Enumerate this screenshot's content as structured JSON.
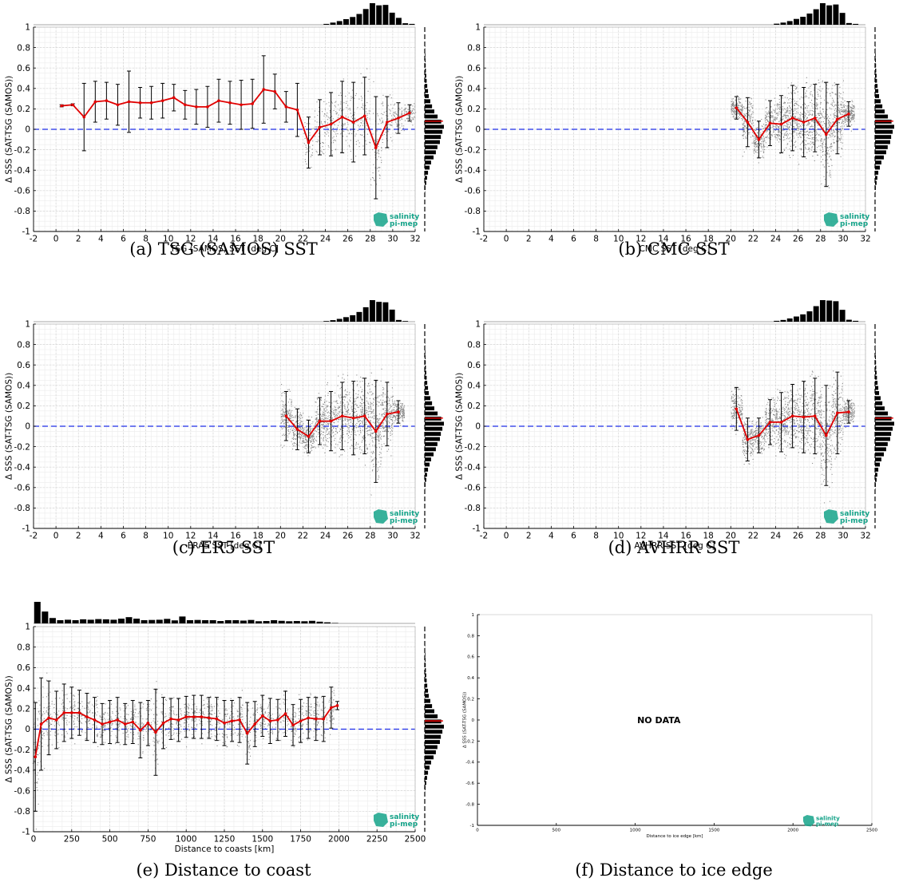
{
  "colors": {
    "line": "#e00000",
    "zero": "#1f2ee8",
    "scatter": "#8a8a8a",
    "logo": "#15a389",
    "bars": "#000000"
  },
  "logo": {
    "line1": "salinity",
    "line2": "pi-mep"
  },
  "chart_data": [
    {
      "id": "a",
      "type": "scatter",
      "caption": "(a) TSG (SAMOS) SST",
      "xlabel": "TSG (SAMOS) SST [deg C]",
      "ylabel": "Δ SSS (SAT-TSG (SAMOS))",
      "xlim": [
        -2,
        32
      ],
      "ylim": [
        -1,
        1
      ],
      "grid": true,
      "xticks": [
        -2,
        0,
        2,
        4,
        6,
        8,
        10,
        12,
        14,
        16,
        18,
        20,
        22,
        24,
        26,
        28,
        30,
        32
      ],
      "yticks": [
        -1,
        -0.8,
        -0.6,
        -0.4,
        -0.2,
        0,
        0.2,
        0.4,
        0.6,
        0.8,
        1
      ],
      "scatter_range": [
        22,
        32
      ],
      "mean_curve": {
        "x": [
          0.5,
          1.5,
          2.5,
          3.5,
          4.5,
          5.5,
          6.5,
          7.5,
          8.5,
          9.5,
          10.5,
          11.5,
          12.5,
          13.5,
          14.5,
          15.5,
          16.5,
          17.5,
          18.5,
          19.5,
          20.5,
          21.5,
          22.5,
          23.5,
          24.5,
          25.5,
          26.5,
          27.5,
          28.5,
          29.5,
          30.5,
          31.5
        ],
        "y": [
          0.23,
          0.24,
          0.12,
          0.27,
          0.28,
          0.24,
          0.27,
          0.26,
          0.26,
          0.28,
          0.31,
          0.24,
          0.22,
          0.22,
          0.28,
          0.26,
          0.24,
          0.25,
          0.39,
          0.37,
          0.22,
          0.19,
          -0.13,
          0.02,
          0.05,
          0.12,
          0.07,
          0.13,
          -0.18,
          0.07,
          0.11,
          0.16
        ],
        "err": [
          0.01,
          0.01,
          0.33,
          0.2,
          0.18,
          0.2,
          0.3,
          0.15,
          0.16,
          0.17,
          0.13,
          0.14,
          0.17,
          0.2,
          0.21,
          0.21,
          0.24,
          0.24,
          0.33,
          0.17,
          0.15,
          0.26,
          0.25,
          0.27,
          0.31,
          0.35,
          0.39,
          0.38,
          0.5,
          0.25,
          0.15,
          0.08
        ]
      },
      "top_hist": [
        0,
        0,
        0,
        0,
        0,
        0,
        0,
        0,
        0,
        0,
        0,
        0,
        0,
        0,
        0,
        0,
        0,
        0,
        0,
        0,
        0,
        0,
        0,
        0,
        0,
        0,
        0,
        0,
        0,
        0,
        0,
        0,
        0,
        0,
        0,
        0,
        0,
        0,
        0,
        0,
        0,
        0,
        0,
        0,
        0.04,
        0.1,
        0.17,
        0.26,
        0.36,
        0.5,
        0.73,
        1.0,
        0.9,
        0.92,
        0.56,
        0.32,
        0.07,
        0.04
      ],
      "right_hist": [
        0,
        0,
        0,
        0,
        0,
        0,
        0,
        0.02,
        0.04,
        0.08,
        0.12,
        0.17,
        0.25,
        0.33,
        0.46,
        0.58,
        0.66,
        0.79,
        0.84,
        0.92,
        1.0,
        0.86,
        0.67,
        0.5,
        0.38,
        0.29,
        0.21,
        0.17,
        0.13,
        0.1,
        0.08,
        0.06,
        0.05,
        0.04,
        0.03,
        0.02,
        0.02,
        0.01,
        0.01,
        0.01
      ]
    },
    {
      "id": "b",
      "type": "scatter",
      "caption": "(b) CMC SST",
      "xlabel": "CMC SST [deg C]",
      "ylabel": "Δ SSS (SAT-TSG (SAMOS))",
      "xlim": [
        -2,
        32
      ],
      "ylim": [
        -1,
        1
      ],
      "grid": true,
      "xticks": [
        -2,
        0,
        2,
        4,
        6,
        8,
        10,
        12,
        14,
        16,
        18,
        20,
        22,
        24,
        26,
        28,
        30,
        32
      ],
      "yticks": [
        -1,
        -0.8,
        -0.6,
        -0.4,
        -0.2,
        0,
        0.2,
        0.4,
        0.6,
        0.8,
        1
      ],
      "scatter_range": [
        20,
        31
      ],
      "mean_curve": {
        "x": [
          20.5,
          21.5,
          22.5,
          23.5,
          24.5,
          25.5,
          26.5,
          27.5,
          28.5,
          29.5,
          30.5
        ],
        "y": [
          0.21,
          0.07,
          -0.1,
          0.06,
          0.05,
          0.11,
          0.07,
          0.11,
          -0.05,
          0.1,
          0.15
        ],
        "err": [
          0.11,
          0.24,
          0.18,
          0.22,
          0.28,
          0.32,
          0.34,
          0.33,
          0.51,
          0.34,
          0.12
        ]
      },
      "top_hist": [
        0,
        0,
        0,
        0,
        0,
        0,
        0,
        0,
        0,
        0,
        0,
        0,
        0,
        0,
        0,
        0,
        0,
        0,
        0,
        0,
        0,
        0,
        0,
        0,
        0,
        0,
        0,
        0,
        0,
        0,
        0,
        0,
        0,
        0,
        0,
        0,
        0,
        0,
        0,
        0,
        0,
        0,
        0,
        0,
        0.05,
        0.1,
        0.17,
        0.27,
        0.37,
        0.52,
        0.72,
        1.0,
        0.9,
        0.94,
        0.55,
        0.08,
        0.04,
        0
      ],
      "right_hist": [
        0,
        0,
        0,
        0,
        0,
        0,
        0,
        0.02,
        0.04,
        0.08,
        0.12,
        0.17,
        0.25,
        0.33,
        0.46,
        0.58,
        0.66,
        0.79,
        0.84,
        0.92,
        1.0,
        0.86,
        0.67,
        0.5,
        0.38,
        0.29,
        0.21,
        0.17,
        0.13,
        0.1,
        0.08,
        0.06,
        0.05,
        0.04,
        0.03,
        0.02,
        0.02,
        0.01,
        0.01,
        0.01
      ]
    },
    {
      "id": "c",
      "type": "scatter",
      "caption": "(c) ER5 SST",
      "xlabel": "ERA5 SST [deg C]",
      "ylabel": "Δ SSS (SAT-TSG (SAMOS))",
      "xlim": [
        -2,
        32
      ],
      "ylim": [
        -1,
        1
      ],
      "grid": true,
      "xticks": [
        -2,
        0,
        2,
        4,
        6,
        8,
        10,
        12,
        14,
        16,
        18,
        20,
        22,
        24,
        26,
        28,
        30,
        32
      ],
      "yticks": [
        -1,
        -0.8,
        -0.6,
        -0.4,
        -0.2,
        0,
        0.2,
        0.4,
        0.6,
        0.8,
        1
      ],
      "scatter_range": [
        20,
        31
      ],
      "mean_curve": {
        "x": [
          20.5,
          21.5,
          22.5,
          23.5,
          24.5,
          25.5,
          26.5,
          27.5,
          28.5,
          29.5,
          30.5
        ],
        "y": [
          0.1,
          -0.03,
          -0.1,
          0.05,
          0.05,
          0.1,
          0.08,
          0.1,
          -0.05,
          0.12,
          0.14
        ],
        "err": [
          0.24,
          0.2,
          0.16,
          0.23,
          0.29,
          0.33,
          0.36,
          0.37,
          0.5,
          0.31,
          0.11
        ]
      },
      "top_hist": [
        0,
        0,
        0,
        0,
        0,
        0,
        0,
        0,
        0,
        0,
        0,
        0,
        0,
        0,
        0,
        0,
        0,
        0,
        0,
        0,
        0,
        0,
        0,
        0,
        0,
        0,
        0,
        0,
        0,
        0,
        0,
        0,
        0,
        0,
        0,
        0,
        0,
        0,
        0,
        0,
        0,
        0,
        0,
        0,
        0.03,
        0.07,
        0.13,
        0.21,
        0.3,
        0.45,
        0.67,
        1.0,
        0.92,
        0.9,
        0.56,
        0.08,
        0.03,
        0
      ],
      "right_hist": [
        0,
        0,
        0,
        0,
        0,
        0,
        0,
        0.02,
        0.04,
        0.08,
        0.12,
        0.17,
        0.25,
        0.33,
        0.46,
        0.58,
        0.66,
        0.79,
        0.84,
        0.92,
        1.0,
        0.86,
        0.67,
        0.5,
        0.38,
        0.29,
        0.21,
        0.17,
        0.13,
        0.1,
        0.08,
        0.06,
        0.05,
        0.04,
        0.03,
        0.02,
        0.02,
        0.01,
        0.01,
        0.01
      ]
    },
    {
      "id": "d",
      "type": "scatter",
      "caption": "(d) AVHRR SST",
      "xlabel": "AVHRR SST [deg C]",
      "ylabel": "Δ SSS (SAT-TSG (SAMOS))",
      "xlim": [
        -2,
        32
      ],
      "ylim": [
        -1,
        1
      ],
      "grid": true,
      "xticks": [
        -2,
        0,
        2,
        4,
        6,
        8,
        10,
        12,
        14,
        16,
        18,
        20,
        22,
        24,
        26,
        28,
        30,
        32
      ],
      "yticks": [
        -1,
        -0.8,
        -0.6,
        -0.4,
        -0.2,
        0,
        0.2,
        0.4,
        0.6,
        0.8,
        1
      ],
      "scatter_range": [
        20,
        31
      ],
      "mean_curve": {
        "x": [
          20.5,
          21.5,
          22.5,
          23.5,
          24.5,
          25.5,
          26.5,
          27.5,
          28.5,
          29.5,
          30.5
        ],
        "y": [
          0.17,
          -0.13,
          -0.09,
          0.04,
          0.04,
          0.1,
          0.09,
          0.1,
          -0.09,
          0.13,
          0.14
        ],
        "err": [
          0.21,
          0.21,
          0.17,
          0.22,
          0.29,
          0.31,
          0.35,
          0.37,
          0.49,
          0.4,
          0.11
        ]
      },
      "top_hist": [
        0,
        0,
        0,
        0,
        0,
        0,
        0,
        0,
        0,
        0,
        0,
        0,
        0,
        0,
        0,
        0,
        0,
        0,
        0,
        0,
        0,
        0,
        0,
        0,
        0,
        0,
        0,
        0,
        0,
        0,
        0,
        0,
        0,
        0,
        0,
        0,
        0,
        0,
        0,
        0,
        0,
        0,
        0,
        0,
        0.04,
        0.08,
        0.15,
        0.24,
        0.34,
        0.48,
        0.72,
        1.0,
        0.98,
        0.95,
        0.55,
        0.09,
        0.04,
        0
      ],
      "right_hist": [
        0,
        0,
        0,
        0,
        0,
        0,
        0,
        0.02,
        0.04,
        0.08,
        0.12,
        0.17,
        0.25,
        0.33,
        0.46,
        0.58,
        0.66,
        0.79,
        0.84,
        0.92,
        1.0,
        0.86,
        0.67,
        0.5,
        0.38,
        0.29,
        0.21,
        0.17,
        0.13,
        0.1,
        0.08,
        0.06,
        0.05,
        0.04,
        0.03,
        0.02,
        0.02,
        0.01,
        0.01,
        0.01
      ]
    },
    {
      "id": "e",
      "type": "scatter",
      "caption": "(e) Distance to coast",
      "xlabel": "Distance to coasts [km]",
      "ylabel": "Δ SSS (SAT-TSG (SAMOS))",
      "xlim": [
        0,
        2500
      ],
      "ylim": [
        -1,
        1
      ],
      "grid": true,
      "xticks": [
        0,
        250,
        500,
        750,
        1000,
        1250,
        1500,
        1750,
        2000,
        2250,
        2500
      ],
      "yticks": [
        -1,
        -0.8,
        -0.6,
        -0.4,
        -0.2,
        0,
        0.2,
        0.4,
        0.6,
        0.8,
        1
      ],
      "scatter_range": [
        0,
        1950
      ],
      "mean_curve": {
        "x": [
          12,
          50,
          100,
          150,
          200,
          250,
          300,
          350,
          400,
          450,
          500,
          550,
          600,
          650,
          700,
          750,
          800,
          850,
          900,
          950,
          1000,
          1050,
          1100,
          1150,
          1200,
          1250,
          1300,
          1350,
          1400,
          1450,
          1500,
          1550,
          1600,
          1650,
          1700,
          1750,
          1800,
          1850,
          1900,
          1950,
          1990
        ],
        "y": [
          -0.27,
          0.05,
          0.11,
          0.09,
          0.16,
          0.16,
          0.16,
          0.12,
          0.09,
          0.05,
          0.07,
          0.09,
          0.05,
          0.07,
          -0.01,
          0.06,
          -0.03,
          0.06,
          0.1,
          0.09,
          0.12,
          0.12,
          0.12,
          0.11,
          0.1,
          0.06,
          0.08,
          0.09,
          -0.04,
          0.05,
          0.13,
          0.08,
          0.09,
          0.15,
          0.04,
          0.08,
          0.11,
          0.1,
          0.1,
          0.21,
          0.23
        ],
        "err": [
          0.53,
          0.45,
          0.36,
          0.28,
          0.28,
          0.25,
          0.22,
          0.23,
          0.22,
          0.2,
          0.21,
          0.22,
          0.2,
          0.21,
          0.27,
          0.22,
          0.42,
          0.25,
          0.2,
          0.21,
          0.2,
          0.21,
          0.21,
          0.2,
          0.21,
          0.22,
          0.2,
          0.22,
          0.3,
          0.22,
          0.2,
          0.22,
          0.2,
          0.22,
          0.2,
          0.21,
          0.2,
          0.21,
          0.22,
          0.2,
          0.04
        ]
      },
      "top_hist": [
        1.0,
        0.55,
        0.25,
        0.15,
        0.17,
        0.15,
        0.19,
        0.17,
        0.2,
        0.19,
        0.17,
        0.22,
        0.29,
        0.22,
        0.15,
        0.16,
        0.17,
        0.21,
        0.14,
        0.32,
        0.15,
        0.16,
        0.15,
        0.15,
        0.11,
        0.15,
        0.15,
        0.13,
        0.16,
        0.1,
        0.11,
        0.15,
        0.12,
        0.1,
        0.11,
        0.1,
        0.12,
        0.08,
        0.05,
        0.02,
        0,
        0,
        0,
        0,
        0,
        0,
        0,
        0,
        0,
        0
      ],
      "right_hist": [
        0,
        0,
        0,
        0,
        0,
        0,
        0,
        0.02,
        0.04,
        0.08,
        0.12,
        0.17,
        0.25,
        0.33,
        0.46,
        0.58,
        0.66,
        0.79,
        0.84,
        0.92,
        1.0,
        0.86,
        0.67,
        0.5,
        0.38,
        0.29,
        0.21,
        0.17,
        0.13,
        0.1,
        0.08,
        0.06,
        0.05,
        0.04,
        0.03,
        0.02,
        0.02,
        0.01,
        0.01,
        0.01
      ]
    },
    {
      "id": "f",
      "type": "scatter",
      "caption": "(f) Distance to ice edge",
      "xlabel": "Distance to ice edge [km]",
      "ylabel": "Δ SSS (SAT-TSG (SAMOS))",
      "xlim": [
        0,
        2500
      ],
      "ylim": [
        -1,
        1
      ],
      "grid": false,
      "xticks": [
        0,
        500,
        1000,
        1500,
        2000,
        2500
      ],
      "yticks": [
        -1,
        -0.8,
        -0.6,
        -0.4,
        -0.2,
        0,
        0.2,
        0.4,
        0.6,
        0.8,
        1
      ],
      "annotation": "NO DATA"
    }
  ]
}
